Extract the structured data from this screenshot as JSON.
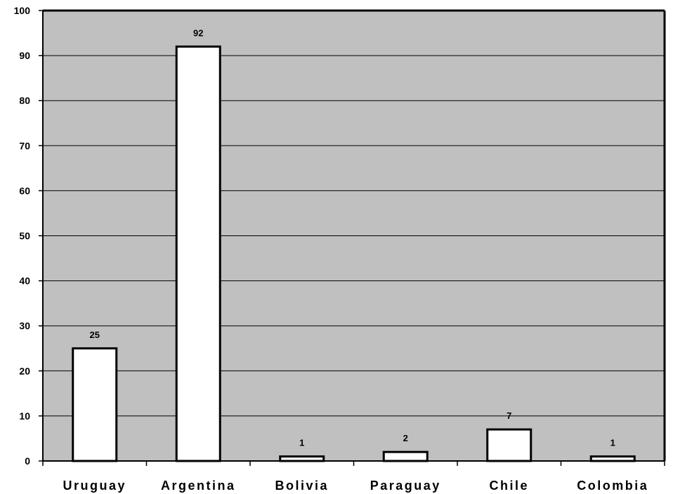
{
  "chart_data": {
    "type": "bar",
    "categories": [
      "Uruguay",
      "Argentina",
      "Bolivia",
      "Paraguay",
      "Chile",
      "Colombia"
    ],
    "values": [
      25,
      92,
      1,
      2,
      7,
      1
    ],
    "data_labels": [
      "25",
      "92",
      "1",
      "2",
      "7",
      "1"
    ],
    "ylim": [
      0,
      100
    ],
    "yticks": [
      0,
      10,
      20,
      30,
      40,
      50,
      60,
      70,
      80,
      90,
      100
    ],
    "grid": true,
    "legend": "none",
    "colors": {
      "plot_background": "#c0c0c0",
      "bar_fill": "#ffffff",
      "bar_stroke": "#000000",
      "gridline": "#000000"
    }
  }
}
